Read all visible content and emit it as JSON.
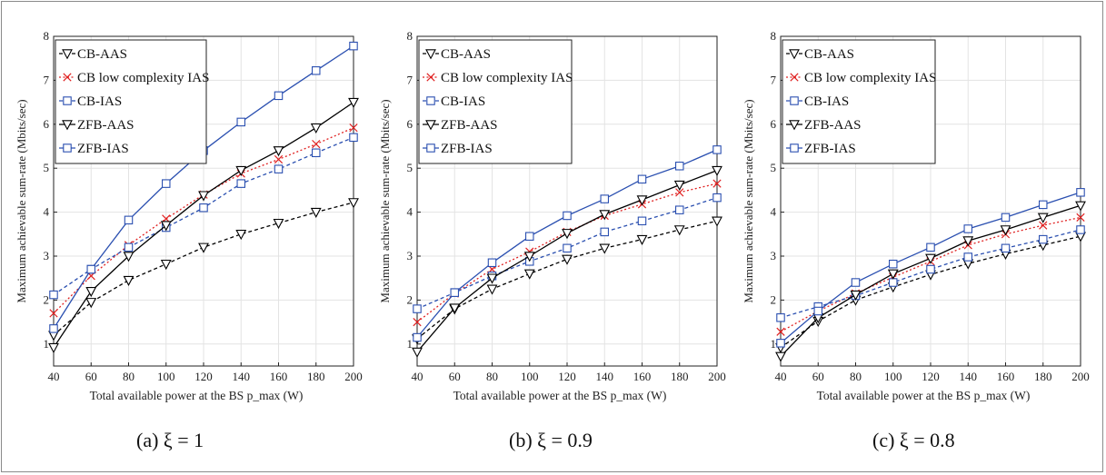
{
  "chart_data": [
    {
      "type": "line",
      "caption": "(a) ξ = 1",
      "xlabel": "Total available power at the BS p_max (W)",
      "ylabel": "Maximum achievable sum-rate (Mbits/sec)",
      "xlim": [
        40,
        200
      ],
      "ylim": [
        0.5,
        8
      ],
      "xticks": [
        40,
        60,
        80,
        100,
        120,
        140,
        160,
        180,
        200
      ],
      "yticks": [
        1,
        2,
        3,
        4,
        5,
        6,
        7,
        8
      ],
      "grid": true,
      "legend_position": "top-left",
      "x": [
        40,
        60,
        80,
        100,
        120,
        140,
        160,
        180,
        200
      ],
      "series": [
        {
          "name": "CB-AAS",
          "color": "#000000",
          "dash": "dashed",
          "marker": "triangle-down",
          "values": [
            1.2,
            1.95,
            2.45,
            2.82,
            3.2,
            3.5,
            3.75,
            4.0,
            4.22
          ]
        },
        {
          "name": "CB low complexity IAS",
          "color": "#e02020",
          "dash": "dotted",
          "marker": "x",
          "values": [
            1.7,
            2.55,
            3.25,
            3.85,
            4.4,
            4.88,
            5.2,
            5.55,
            5.92
          ]
        },
        {
          "name": "CB-IAS",
          "color": "#2a4fb0",
          "dash": "dashed",
          "marker": "square",
          "values": [
            2.12,
            2.7,
            3.2,
            3.65,
            4.1,
            4.65,
            4.98,
            5.35,
            5.7
          ]
        },
        {
          "name": "ZFB-AAS",
          "color": "#000000",
          "dash": "solid",
          "marker": "triangle-down",
          "values": [
            0.92,
            2.2,
            3.0,
            3.7,
            4.38,
            4.95,
            5.4,
            5.92,
            6.5
          ]
        },
        {
          "name": "ZFB-IAS",
          "color": "#2a4fb0",
          "dash": "solid",
          "marker": "square",
          "values": [
            1.35,
            2.7,
            3.82,
            4.65,
            5.4,
            6.05,
            6.65,
            7.22,
            7.78
          ]
        }
      ]
    },
    {
      "type": "line",
      "caption": "(b) ξ = 0.9",
      "xlabel": "Total available power at the BS p_max (W)",
      "ylabel": "Maximum achievable sum-rate (Mbits/sec)",
      "xlim": [
        40,
        200
      ],
      "ylim": [
        0.5,
        8
      ],
      "xticks": [
        40,
        60,
        80,
        100,
        120,
        140,
        160,
        180,
        200
      ],
      "yticks": [
        1,
        2,
        3,
        4,
        5,
        6,
        7,
        8
      ],
      "grid": true,
      "legend_position": "top-left",
      "x": [
        40,
        60,
        80,
        100,
        120,
        140,
        160,
        180,
        200
      ],
      "series": [
        {
          "name": "CB-AAS",
          "color": "#000000",
          "dash": "dashed",
          "marker": "triangle-down",
          "values": [
            1.12,
            1.8,
            2.25,
            2.6,
            2.93,
            3.18,
            3.38,
            3.6,
            3.8
          ]
        },
        {
          "name": "CB low complexity IAS",
          "color": "#e02020",
          "dash": "dotted",
          "marker": "x",
          "values": [
            1.5,
            2.15,
            2.7,
            3.1,
            3.55,
            3.92,
            4.18,
            4.45,
            4.65
          ]
        },
        {
          "name": "CB-IAS",
          "color": "#2a4fb0",
          "dash": "dashed",
          "marker": "square",
          "values": [
            1.8,
            2.17,
            2.55,
            2.88,
            3.18,
            3.55,
            3.8,
            4.05,
            4.33
          ]
        },
        {
          "name": "ZFB-AAS",
          "color": "#000000",
          "dash": "solid",
          "marker": "triangle-down",
          "values": [
            0.82,
            1.82,
            2.5,
            3.0,
            3.52,
            3.95,
            4.28,
            4.62,
            4.95
          ]
        },
        {
          "name": "ZFB-IAS",
          "color": "#2a4fb0",
          "dash": "solid",
          "marker": "square",
          "values": [
            1.15,
            2.17,
            2.85,
            3.45,
            3.92,
            4.3,
            4.75,
            5.05,
            5.42
          ]
        }
      ]
    },
    {
      "type": "line",
      "caption": "(c) ξ = 0.8",
      "xlabel": "Total available power at the BS p_max (W)",
      "ylabel": "Maximum achievable sum-rate (Mbits/sec)",
      "xlim": [
        40,
        200
      ],
      "ylim": [
        0.5,
        8
      ],
      "xticks": [
        40,
        60,
        80,
        100,
        120,
        140,
        160,
        180,
        200
      ],
      "yticks": [
        1,
        2,
        3,
        4,
        5,
        6,
        7,
        8
      ],
      "grid": true,
      "legend_position": "top-left",
      "x": [
        40,
        60,
        80,
        100,
        120,
        140,
        160,
        180,
        200
      ],
      "series": [
        {
          "name": "CB-AAS",
          "color": "#000000",
          "dash": "dashed",
          "marker": "triangle-down",
          "values": [
            0.92,
            1.52,
            2.0,
            2.3,
            2.58,
            2.83,
            3.05,
            3.25,
            3.45
          ]
        },
        {
          "name": "CB low complexity IAS",
          "color": "#e02020",
          "dash": "dotted",
          "marker": "x",
          "values": [
            1.28,
            1.75,
            2.15,
            2.52,
            2.88,
            3.25,
            3.5,
            3.7,
            3.88
          ]
        },
        {
          "name": "CB-IAS",
          "color": "#2a4fb0",
          "dash": "dashed",
          "marker": "square",
          "values": [
            1.6,
            1.85,
            2.1,
            2.4,
            2.7,
            2.98,
            3.18,
            3.38,
            3.6
          ]
        },
        {
          "name": "ZFB-AAS",
          "color": "#000000",
          "dash": "solid",
          "marker": "triangle-down",
          "values": [
            0.72,
            1.6,
            2.12,
            2.6,
            2.95,
            3.35,
            3.6,
            3.88,
            4.15
          ]
        },
        {
          "name": "ZFB-IAS",
          "color": "#2a4fb0",
          "dash": "solid",
          "marker": "square",
          "values": [
            1.02,
            1.75,
            2.4,
            2.82,
            3.2,
            3.62,
            3.88,
            4.17,
            4.45
          ]
        }
      ]
    }
  ]
}
